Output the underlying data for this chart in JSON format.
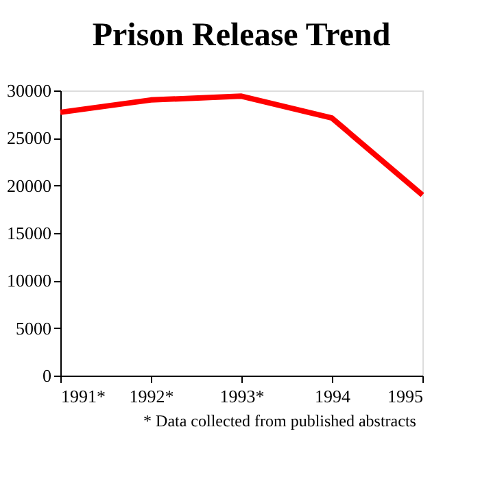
{
  "chart_data": {
    "type": "line",
    "title": "Prison Release Trend",
    "categories": [
      "1991*",
      "1992*",
      "1993*",
      "1994",
      "1995"
    ],
    "series": [
      {
        "color": "#ff0000",
        "values": [
          27700,
          29000,
          29400,
          27100,
          19000
        ]
      }
    ],
    "ylim": [
      0,
      30000
    ],
    "yticks": [
      0,
      5000,
      10000,
      15000,
      20000,
      25000,
      30000
    ],
    "grid": false,
    "marker": "none",
    "line_style": "solid",
    "annotations": [
      "* Data collected from published abstracts"
    ]
  }
}
